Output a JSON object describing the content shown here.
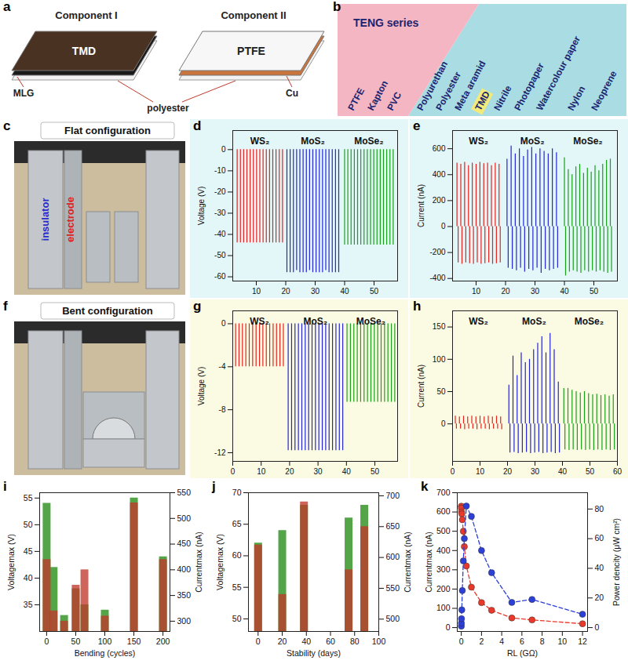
{
  "diagrams": [
    {
      "panel": "a",
      "components": [
        {
          "title": "Component I",
          "layers": [
            "TMD",
            "MLG"
          ]
        },
        {
          "title": "Component II",
          "layers": [
            "PTFE",
            "Cu"
          ]
        }
      ],
      "shared_layer": "polyester"
    },
    {
      "panel": "b",
      "title": "TENG series",
      "groups": [
        [
          "PTFE",
          "Kapton",
          "PVC"
        ],
        [
          "Polyurethan",
          "Polyester",
          "Meta aramid",
          "TMD",
          "Nitrile",
          "Photopaper",
          "Watercolour paper",
          "Nylon",
          "Neoprene"
        ]
      ],
      "highlight": "TMD"
    },
    {
      "panel": "c",
      "title": "Flat configuration",
      "labels": [
        {
          "text": "insulator",
          "color": "#2a2ad0"
        },
        {
          "text": "electrode",
          "color": "#e02020"
        }
      ]
    },
    {
      "panel": "f",
      "title": "Bent configuration"
    }
  ],
  "chart_data": [
    {
      "panel": "d",
      "type": "stem",
      "ylabel": "Voltage (V)",
      "xlim": [
        2,
        58
      ],
      "xticks": [
        10,
        20,
        30,
        40,
        50
      ],
      "ylim": [
        -62,
        9
      ],
      "yticks": [
        -60,
        -50,
        -40,
        -30,
        -20,
        -10,
        0
      ],
      "series": [
        {
          "name": "WS₂",
          "color": "#e8201e",
          "x": [
            3.5,
            4.6,
            5.7,
            6.8,
            7.9,
            9.0,
            10.1,
            11.2,
            12.3,
            13.4,
            14.5,
            15.6,
            16.7,
            17.8,
            18.9
          ],
          "values": [
            -44,
            -44,
            -44,
            -44,
            -44,
            -44,
            -44,
            -44,
            -44,
            -44,
            -44,
            -44,
            -44,
            -44,
            -44
          ]
        },
        {
          "name": "MoS₂",
          "color": "#2424d8",
          "x": [
            20.4,
            21.5,
            22.6,
            23.7,
            24.8,
            25.9,
            27.0,
            28.1,
            29.2,
            30.3,
            31.4,
            32.5,
            33.6,
            34.7,
            35.8,
            36.9,
            38.0
          ],
          "values": [
            -58,
            -58,
            -58,
            -57,
            -58,
            -58,
            -58,
            -57,
            -58,
            -58,
            -58,
            -58,
            -57,
            -58,
            -58,
            -58,
            -58
          ]
        },
        {
          "name": "MoSe₂",
          "color": "#18a018",
          "x": [
            40.0,
            41.1,
            42.2,
            43.3,
            44.4,
            45.5,
            46.6,
            47.7,
            48.8,
            49.9,
            51.0,
            52.1,
            53.2,
            54.3,
            55.4,
            56.5
          ],
          "values": [
            -45,
            -45,
            -45,
            -45,
            -45,
            -45,
            -45,
            -45,
            -45,
            -45,
            -45,
            -45,
            -45,
            -45,
            -45,
            -45
          ]
        }
      ]
    },
    {
      "panel": "e",
      "type": "stem",
      "ylabel": "Current (nA)",
      "xlim": [
        2,
        58
      ],
      "xticks": [
        10,
        20,
        30,
        40,
        50
      ],
      "ylim": [
        -420,
        740
      ],
      "yticks": [
        -400,
        -200,
        0,
        200,
        400,
        600
      ],
      "series": [
        {
          "name": "WS₂",
          "color": "#e8201e",
          "x": [
            3.5,
            3.9,
            4.8,
            5.2,
            6.1,
            6.5,
            7.4,
            7.8,
            8.7,
            9.1,
            10.0,
            10.4,
            11.3,
            11.7,
            12.6,
            13.0,
            13.9,
            14.3,
            15.2,
            15.6,
            16.5,
            16.9,
            17.8,
            18.2
          ],
          "values": [
            490,
            -280,
            480,
            -290,
            495,
            -280,
            470,
            -285,
            490,
            -290,
            480,
            -280,
            495,
            -290,
            485,
            -285,
            490,
            -280,
            470,
            -290,
            490,
            -285,
            480,
            -280
          ]
        },
        {
          "name": "MoS₂",
          "color": "#2424d8",
          "x": [
            20.5,
            20.9,
            21.9,
            22.3,
            23.3,
            23.7,
            24.7,
            25.1,
            26.1,
            26.5,
            27.5,
            27.9,
            28.9,
            29.3,
            30.3,
            30.7,
            31.7,
            32.1,
            33.1,
            33.5,
            34.5,
            34.9,
            35.9,
            36.3,
            37.3,
            37.7
          ],
          "values": [
            520,
            -320,
            620,
            -330,
            560,
            -340,
            600,
            -320,
            540,
            -350,
            590,
            -330,
            610,
            -340,
            560,
            -320,
            600,
            -360,
            580,
            -330,
            560,
            -340,
            600,
            -330,
            570,
            -320
          ]
        },
        {
          "name": "MoSe₂",
          "color": "#18a018",
          "x": [
            40.0,
            40.4,
            41.3,
            41.7,
            42.6,
            43.0,
            43.9,
            44.3,
            45.2,
            45.6,
            46.5,
            46.9,
            47.8,
            48.2,
            49.1,
            49.5,
            50.4,
            50.8,
            51.7,
            52.1,
            53.0,
            53.4,
            54.3,
            54.7,
            55.6,
            56.0
          ],
          "values": [
            530,
            -380,
            440,
            -350,
            400,
            -340,
            460,
            -350,
            480,
            -360,
            410,
            -340,
            450,
            -350,
            420,
            -340,
            470,
            -350,
            430,
            -340,
            480,
            -350,
            510,
            -360,
            520,
            -350
          ]
        }
      ]
    },
    {
      "panel": "g",
      "type": "stem",
      "ylabel": "Voltage (V)",
      "xlim": [
        0,
        58
      ],
      "xticks": [
        0,
        10,
        20,
        30,
        40,
        50
      ],
      "ylim": [
        -12.8,
        1.2
      ],
      "yticks": [
        -12,
        -8,
        -4,
        0
      ],
      "series": [
        {
          "name": "WS₂",
          "color": "#e8201e",
          "x": [
            1.0,
            2.2,
            3.4,
            4.6,
            5.8,
            7.0,
            8.2,
            9.4,
            10.6,
            11.8,
            13.0,
            14.2,
            15.4,
            16.6,
            17.8
          ],
          "values": [
            -4.0,
            -4.0,
            -4.0,
            -4.0,
            -4.0,
            -4.0,
            -4.0,
            -4.0,
            -4.0,
            -4.0,
            -4.0,
            -4.0,
            -4.0,
            -4.0,
            -4.0
          ]
        },
        {
          "name": "MoS₂",
          "color": "#2424d8",
          "x": [
            19.5,
            20.7,
            21.9,
            23.1,
            24.3,
            25.5,
            26.7,
            27.9,
            29.1,
            30.3,
            31.5,
            32.7,
            33.9,
            35.1,
            36.3,
            37.5,
            38.7
          ],
          "values": [
            -11.8,
            -11.8,
            -11.8,
            -11.8,
            -11.8,
            -11.8,
            -11.8,
            -11.8,
            -11.8,
            -11.8,
            -11.8,
            -11.8,
            -11.8,
            -11.8,
            -11.8,
            -11.8,
            -11.8
          ]
        },
        {
          "name": "MoSe₂",
          "color": "#18a018",
          "x": [
            40.2,
            41.4,
            42.6,
            43.8,
            45.0,
            46.2,
            47.4,
            48.6,
            49.8,
            51.0,
            52.2,
            53.4,
            54.6,
            55.8,
            57.0
          ],
          "values": [
            -7.3,
            -7.3,
            -7.3,
            -7.3,
            -7.3,
            -7.3,
            -7.3,
            -7.3,
            -7.3,
            -7.3,
            -7.3,
            -7.3,
            -7.3,
            -7.3,
            -7.3
          ]
        }
      ]
    },
    {
      "panel": "h",
      "type": "stem",
      "ylabel": "Current (nA)",
      "xlim": [
        0,
        60
      ],
      "xticks": [
        0,
        10,
        20,
        30,
        40,
        50,
        60
      ],
      "ylim": [
        -58,
        175
      ],
      "yticks": [
        0,
        50,
        100,
        150
      ],
      "series": [
        {
          "name": "WS₂",
          "color": "#e8201e",
          "x": [
            1.0,
            1.4,
            2.5,
            2.9,
            4.0,
            4.4,
            5.5,
            5.9,
            7.0,
            7.4,
            8.5,
            8.9,
            10.0,
            10.4,
            11.5,
            11.9,
            13.0,
            13.4,
            14.5,
            14.9,
            16.0,
            16.4,
            17.5,
            17.9
          ],
          "values": [
            12,
            -8,
            11,
            -8,
            12,
            -9,
            11,
            -8,
            12,
            -8,
            11,
            -9,
            12,
            -8,
            11,
            -8,
            12,
            -9,
            11,
            -8,
            12,
            -8,
            11,
            -9
          ]
        },
        {
          "name": "MoS₂",
          "color": "#2424d8",
          "x": [
            20.5,
            20.9,
            22.0,
            22.4,
            23.5,
            23.9,
            25.0,
            25.4,
            26.5,
            26.9,
            28.0,
            28.4,
            29.5,
            29.9,
            31.0,
            31.4,
            32.5,
            32.9,
            34.0,
            34.4,
            35.5,
            35.9,
            37.0,
            37.4,
            38.5,
            38.9
          ],
          "values": [
            60,
            -45,
            105,
            -44,
            75,
            -46,
            110,
            -45,
            95,
            -44,
            100,
            -46,
            115,
            -45,
            125,
            -44,
            135,
            -46,
            110,
            -45,
            140,
            -44,
            115,
            -46,
            65,
            -45
          ]
        },
        {
          "name": "MoSe₂",
          "color": "#18a018",
          "x": [
            40.5,
            40.9,
            42.0,
            42.4,
            43.5,
            43.9,
            45.0,
            45.4,
            46.5,
            46.9,
            48.0,
            48.4,
            49.5,
            49.9,
            51.0,
            51.4,
            52.5,
            52.9,
            54.0,
            54.4,
            55.5,
            55.9,
            57.0,
            57.4,
            58.5,
            58.9
          ],
          "values": [
            55,
            -40,
            55,
            -41,
            52,
            -40,
            50,
            -41,
            48,
            -40,
            50,
            -41,
            47,
            -40,
            45,
            -41,
            46,
            -40,
            44,
            -41,
            45,
            -40,
            43,
            -41,
            45,
            -40
          ]
        }
      ]
    },
    {
      "panel": "i",
      "type": "bar",
      "xlabel": "Bending (cycles)",
      "ylabel": "Voltagemax (V)",
      "y2label": "Currentmax (nA)",
      "xlim": [
        -12,
        212
      ],
      "xticks": [
        0,
        50,
        100,
        150,
        200
      ],
      "ylim": [
        30,
        56
      ],
      "yticks": [
        35,
        40,
        45,
        50,
        55
      ],
      "y2lim": [
        280,
        550
      ],
      "y2ticks": [
        300,
        350,
        400,
        450,
        500,
        550
      ],
      "series": [
        {
          "color": "#53a548",
          "x": [
            0,
            12,
            30,
            50,
            65,
            100,
            150,
            200
          ],
          "values": [
            54,
            42,
            33,
            38,
            35,
            34,
            55,
            44
          ]
        },
        {
          "color": "#c0392b",
          "axis": "y2",
          "x": [
            0,
            12,
            30,
            50,
            65,
            100,
            150,
            200
          ],
          "values": [
            420,
            320,
            300,
            370,
            400,
            310,
            530,
            420
          ]
        }
      ]
    },
    {
      "panel": "j",
      "type": "bar",
      "xlabel": "Stability (days)",
      "ylabel": "Voltagemax (V)",
      "y2label": "Currentmax (nA)",
      "xlim": [
        -8,
        100
      ],
      "xticks": [
        0,
        20,
        40,
        60,
        80,
        100
      ],
      "ylim": [
        48,
        70
      ],
      "yticks": [
        50,
        55,
        60,
        65,
        70
      ],
      "y2lim": [
        480,
        705
      ],
      "y2ticks": [
        500,
        550,
        600,
        650,
        700
      ],
      "series": [
        {
          "color": "#53a548",
          "x": [
            0,
            20,
            38,
            75,
            88
          ],
          "values": [
            62,
            64,
            68,
            66,
            68
          ]
        },
        {
          "color": "#c0392b",
          "axis": "y2",
          "x": [
            0,
            20,
            38,
            75,
            88
          ],
          "values": [
            620,
            540,
            690,
            580,
            650
          ]
        }
      ]
    },
    {
      "panel": "k",
      "type": "line",
      "xlabel": "RL (GΩ)",
      "ylabel": "Currentmax (nA)",
      "y2label": "Power dencity (μW cm²)",
      "xlim": [
        -0.4,
        12.5
      ],
      "xticks": [
        0,
        2,
        4,
        6,
        8,
        10,
        12
      ],
      "ylim": [
        -20,
        700
      ],
      "yticks": [
        0,
        100,
        200,
        300,
        400,
        500,
        600,
        700
      ],
      "y2lim": [
        -2.6,
        91
      ],
      "y2ticks": [
        0,
        20,
        40,
        60,
        80
      ],
      "series": [
        {
          "color": "#e8392a",
          "marker": "circle",
          "line_style": "dashed",
          "x": [
            0.001,
            0.01,
            0.02,
            0.05,
            0.1,
            0.2,
            0.3,
            0.5,
            1,
            2,
            3,
            5,
            7,
            12
          ],
          "values": [
            630,
            620,
            600,
            590,
            560,
            500,
            420,
            320,
            210,
            130,
            90,
            50,
            40,
            20
          ]
        },
        {
          "color": "#2c3fd6",
          "axis": "y2",
          "marker": "circle",
          "line_style": "dashed",
          "x": [
            0.001,
            0.01,
            0.02,
            0.05,
            0.1,
            0.2,
            0.3,
            0.5,
            1,
            2,
            3,
            5,
            7,
            12
          ],
          "values": [
            1,
            3,
            6,
            12,
            25,
            45,
            60,
            82,
            75,
            52,
            37,
            17,
            19,
            9
          ]
        }
      ]
    }
  ]
}
